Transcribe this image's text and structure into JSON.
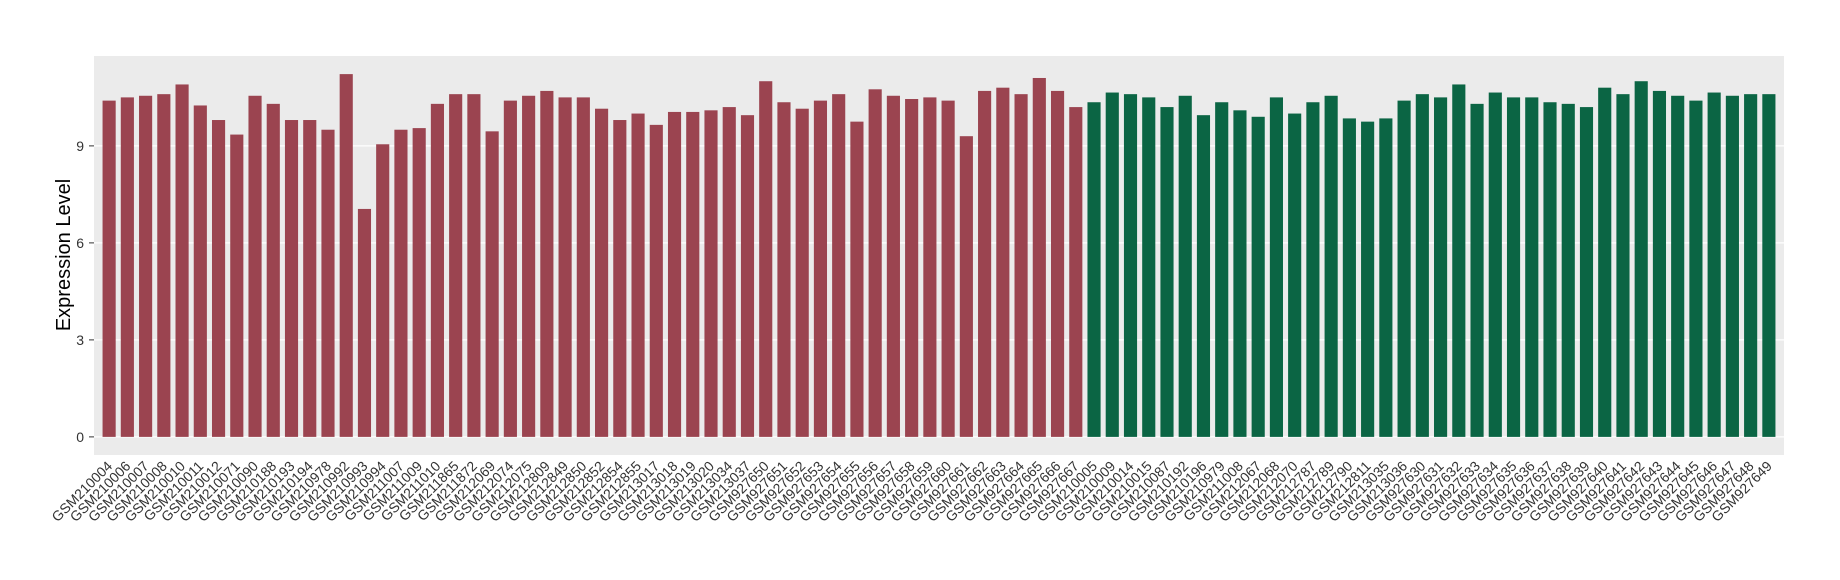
{
  "chart_data": {
    "type": "bar",
    "y_label": "Expression Level",
    "ylim": [
      -0.56,
      11.78
    ],
    "yticks": [
      0,
      3,
      6,
      9
    ],
    "grid": true,
    "groups": [
      {
        "color": "#9b4450",
        "categories": [
          "GSM210004",
          "GSM210006",
          "GSM210007",
          "GSM210008",
          "GSM210010",
          "GSM210011",
          "GSM210012",
          "GSM210071",
          "GSM210090",
          "GSM210188",
          "GSM210193",
          "GSM210194",
          "GSM210978",
          "GSM210992",
          "GSM210993",
          "GSM210994",
          "GSM211007",
          "GSM211009",
          "GSM211010",
          "GSM211865",
          "GSM211872",
          "GSM212069",
          "GSM212074",
          "GSM212075",
          "GSM212809",
          "GSM212849",
          "GSM212850",
          "GSM212852",
          "GSM212854",
          "GSM212855",
          "GSM213017",
          "GSM213018",
          "GSM213019",
          "GSM213020",
          "GSM213034",
          "GSM213037",
          "GSM927650",
          "GSM927651",
          "GSM927652",
          "GSM927653",
          "GSM927654",
          "GSM927655",
          "GSM927656",
          "GSM927657",
          "GSM927658",
          "GSM927659",
          "GSM927660",
          "GSM927661",
          "GSM927662",
          "GSM927663",
          "GSM927664",
          "GSM927665",
          "GSM927666",
          "GSM927667"
        ],
        "values": [
          10.4,
          10.5,
          10.55,
          10.6,
          10.9,
          10.25,
          9.8,
          9.35,
          10.55,
          10.3,
          9.8,
          9.8,
          9.5,
          11.22,
          7.05,
          9.05,
          9.5,
          9.55,
          10.3,
          10.6,
          10.6,
          9.45,
          10.4,
          10.55,
          10.7,
          10.5,
          10.5,
          10.15,
          9.8,
          10.0,
          9.65,
          10.05,
          10.05,
          10.1,
          10.2,
          9.95,
          11.0,
          10.35,
          10.15,
          10.4,
          10.6,
          9.75,
          10.75,
          10.55,
          10.45,
          10.5,
          10.4,
          9.3,
          10.7,
          10.8,
          10.6,
          11.1,
          10.7,
          10.2
        ]
      },
      {
        "color": "#0b6544",
        "categories": [
          "GSM210005",
          "GSM210009",
          "GSM210014",
          "GSM210015",
          "GSM210087",
          "GSM210192",
          "GSM210196",
          "GSM210979",
          "GSM211008",
          "GSM212067",
          "GSM212068",
          "GSM212070",
          "GSM212787",
          "GSM212789",
          "GSM212790",
          "GSM212811",
          "GSM213035",
          "GSM213036",
          "GSM927630",
          "GSM927631",
          "GSM927632",
          "GSM927633",
          "GSM927634",
          "GSM927635",
          "GSM927636",
          "GSM927637",
          "GSM927638",
          "GSM927639",
          "GSM927640",
          "GSM927641",
          "GSM927642",
          "GSM927643",
          "GSM927644",
          "GSM927645",
          "GSM927646",
          "GSM927647",
          "GSM927648",
          "GSM927649"
        ],
        "values": [
          10.35,
          10.65,
          10.6,
          10.5,
          10.2,
          10.55,
          9.95,
          10.35,
          10.1,
          9.9,
          10.5,
          10.0,
          10.35,
          10.55,
          9.85,
          9.75,
          9.85,
          10.4,
          10.6,
          10.5,
          10.9,
          10.3,
          10.65,
          10.5,
          10.5,
          10.35,
          10.3,
          10.2,
          10.8,
          10.6,
          11.0,
          10.7,
          10.55,
          10.4,
          10.65,
          10.55,
          10.6,
          10.6
        ]
      }
    ]
  }
}
